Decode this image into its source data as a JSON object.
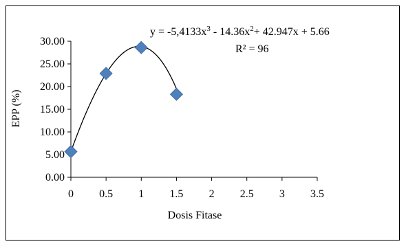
{
  "chart_data": {
    "type": "scatter",
    "x": [
      0,
      0.5,
      1,
      1.5
    ],
    "y": [
      5.66,
      22.9,
      28.6,
      18.3
    ],
    "xlabel": "Dosis Fitase",
    "ylabel": "EPP (%)",
    "xlim": [
      0,
      3.5
    ],
    "ylim": [
      0,
      30
    ],
    "xticks": [
      "0",
      "0.5",
      "1",
      "1.5",
      "2",
      "2.5",
      "3",
      "3.5"
    ],
    "yticks": [
      "0.00",
      "5.00",
      "10.00",
      "15.00",
      "20.00",
      "25.00",
      "30.00"
    ],
    "trendline": {
      "type": "poly3",
      "coefficients": [
        -5.4133,
        -14.36,
        42.947,
        5.66
      ],
      "equation_parts": [
        "y = -5,4133x",
        "3",
        " - 14.36x",
        "2",
        "+ 42.947x + 5.66"
      ],
      "r_squared_label": "R² = 96"
    },
    "grid": false,
    "legend": "none",
    "marker_color": "#4F81BD"
  }
}
